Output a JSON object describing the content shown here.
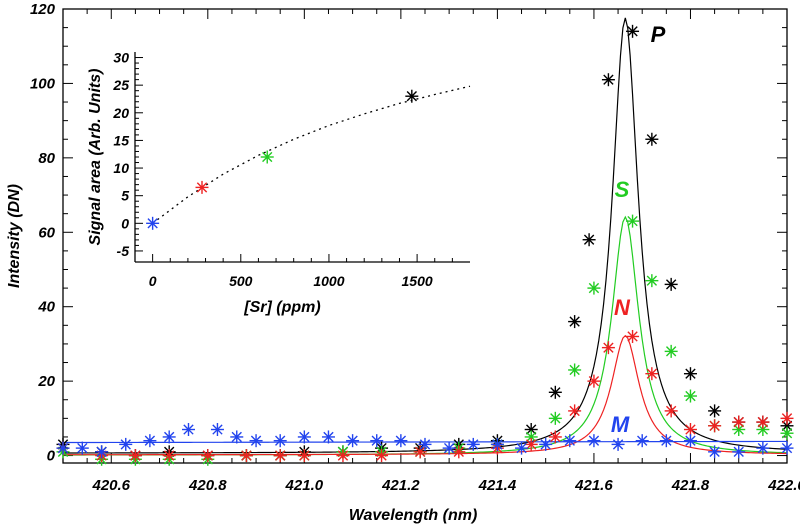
{
  "chart_data": [
    {
      "type": "scatter",
      "xlabel": "Wavelength (nm)",
      "ylabel": "Intensity (DN)",
      "xlim": [
        420.5,
        422.0
      ],
      "ylim": [
        -2,
        120
      ],
      "xticks": [
        "420.6",
        "420.8",
        "421.0",
        "421.2",
        "421.4",
        "421.6",
        "421.8",
        "422.0"
      ],
      "yticks": [
        "0",
        "20",
        "40",
        "60",
        "80",
        "100",
        "120"
      ],
      "fit_peak_center": 421.665,
      "series": [
        {
          "name": "P",
          "color": "#000000",
          "peak": 117,
          "width": 0.065,
          "baseline": 0.6,
          "points": [
            [
              420.5,
              3
            ],
            [
              420.58,
              1
            ],
            [
              420.65,
              0
            ],
            [
              420.72,
              1
            ],
            [
              420.8,
              0
            ],
            [
              420.88,
              0
            ],
            [
              420.95,
              0
            ],
            [
              421.0,
              1
            ],
            [
              421.08,
              1
            ],
            [
              421.16,
              2
            ],
            [
              421.24,
              2
            ],
            [
              421.32,
              3
            ],
            [
              421.4,
              4
            ],
            [
              421.47,
              7
            ],
            [
              421.52,
              17
            ],
            [
              421.56,
              36
            ],
            [
              421.59,
              58
            ],
            [
              421.63,
              101
            ],
            [
              421.68,
              114
            ],
            [
              421.72,
              85
            ],
            [
              421.76,
              46
            ],
            [
              421.8,
              22
            ],
            [
              421.85,
              12
            ],
            [
              421.9,
              9
            ],
            [
              421.95,
              9
            ],
            [
              422.0,
              8
            ]
          ]
        },
        {
          "name": "S",
          "color": "#22cc22",
          "peak": 64,
          "width": 0.068,
          "baseline": 0.1,
          "points": [
            [
              420.5,
              1
            ],
            [
              420.58,
              -1
            ],
            [
              420.65,
              -1
            ],
            [
              420.72,
              -1
            ],
            [
              420.8,
              -1
            ],
            [
              420.88,
              0
            ],
            [
              420.95,
              0
            ],
            [
              421.0,
              0
            ],
            [
              421.08,
              1
            ],
            [
              421.16,
              1
            ],
            [
              421.24,
              1
            ],
            [
              421.32,
              2
            ],
            [
              421.4,
              3
            ],
            [
              421.47,
              5
            ],
            [
              421.52,
              10
            ],
            [
              421.56,
              23
            ],
            [
              421.6,
              45
            ],
            [
              421.68,
              63
            ],
            [
              421.72,
              47
            ],
            [
              421.76,
              28
            ],
            [
              421.8,
              16
            ],
            [
              421.85,
              8
            ],
            [
              421.9,
              7
            ],
            [
              421.95,
              7
            ],
            [
              422.0,
              6
            ]
          ]
        },
        {
          "name": "N",
          "color": "#ee2222",
          "peak": 32,
          "width": 0.07,
          "baseline": 0.2,
          "points": [
            [
              420.5,
              2
            ],
            [
              420.58,
              0
            ],
            [
              420.65,
              0
            ],
            [
              420.72,
              0
            ],
            [
              420.8,
              0
            ],
            [
              420.88,
              0
            ],
            [
              420.95,
              0
            ],
            [
              421.0,
              0
            ],
            [
              421.08,
              0
            ],
            [
              421.16,
              0
            ],
            [
              421.24,
              1
            ],
            [
              421.32,
              1
            ],
            [
              421.4,
              2
            ],
            [
              421.47,
              3
            ],
            [
              421.52,
              5
            ],
            [
              421.56,
              12
            ],
            [
              421.6,
              20
            ],
            [
              421.63,
              29
            ],
            [
              421.68,
              32
            ],
            [
              421.72,
              22
            ],
            [
              421.76,
              12
            ],
            [
              421.8,
              7
            ],
            [
              421.85,
              8
            ],
            [
              421.9,
              9
            ],
            [
              421.95,
              9
            ],
            [
              422.0,
              10
            ]
          ]
        },
        {
          "name": "M",
          "color": "#2244ee",
          "flat": 3.5,
          "points": [
            [
              420.5,
              2
            ],
            [
              420.54,
              2
            ],
            [
              420.58,
              1
            ],
            [
              420.63,
              3
            ],
            [
              420.68,
              4
            ],
            [
              420.72,
              5
            ],
            [
              420.76,
              7
            ],
            [
              420.82,
              7
            ],
            [
              420.86,
              5
            ],
            [
              420.9,
              4
            ],
            [
              420.95,
              4
            ],
            [
              421.0,
              5
            ],
            [
              421.05,
              5
            ],
            [
              421.1,
              4
            ],
            [
              421.15,
              4
            ],
            [
              421.2,
              4
            ],
            [
              421.25,
              3
            ],
            [
              421.3,
              2
            ],
            [
              421.35,
              3
            ],
            [
              421.4,
              3
            ],
            [
              421.45,
              2
            ],
            [
              421.5,
              3
            ],
            [
              421.55,
              4
            ],
            [
              421.6,
              4
            ],
            [
              421.65,
              3
            ],
            [
              421.7,
              4
            ],
            [
              421.75,
              4
            ],
            [
              421.8,
              4
            ],
            [
              421.85,
              1
            ],
            [
              421.9,
              1
            ],
            [
              421.95,
              2
            ],
            [
              422.0,
              2
            ]
          ]
        }
      ]
    },
    {
      "type": "scatter",
      "xlabel": "[Sr] (ppm)",
      "ylabel": "Signal area (Arb. Units)",
      "xlim": [
        -100,
        1800
      ],
      "ylim": [
        -7,
        31
      ],
      "xticks": [
        "0",
        "500",
        "1000",
        "1500"
      ],
      "yticks": [
        "-5",
        "0",
        "5",
        "10",
        "15",
        "20",
        "25",
        "30"
      ],
      "points": [
        {
          "x": 0,
          "y": 0,
          "color": "#2244ee"
        },
        {
          "x": 280,
          "y": 6.5,
          "color": "#ee2222"
        },
        {
          "x": 650,
          "y": 12,
          "color": "#22cc22"
        },
        {
          "x": 1470,
          "y": 23,
          "color": "#000000"
        }
      ],
      "fit_curve": [
        [
          0,
          0
        ],
        [
          200,
          4.8
        ],
        [
          400,
          8.9
        ],
        [
          600,
          12.3
        ],
        [
          800,
          15.2
        ],
        [
          1000,
          17.7
        ],
        [
          1200,
          19.8
        ],
        [
          1400,
          21.7
        ],
        [
          1600,
          23.3
        ],
        [
          1800,
          24.8
        ]
      ]
    }
  ]
}
